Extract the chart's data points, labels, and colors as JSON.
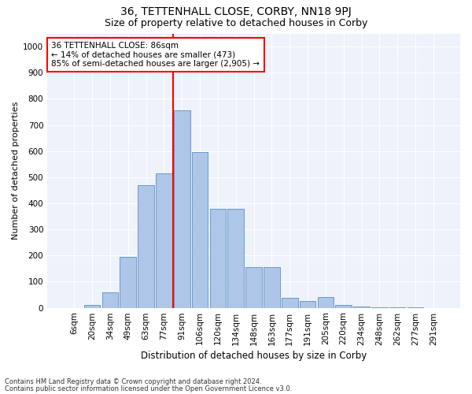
{
  "title": "36, TETTENHALL CLOSE, CORBY, NN18 9PJ",
  "subtitle": "Size of property relative to detached houses in Corby",
  "xlabel": "Distribution of detached houses by size in Corby",
  "ylabel": "Number of detached properties",
  "footnote1": "Contains HM Land Registry data © Crown copyright and database right 2024.",
  "footnote2": "Contains public sector information licensed under the Open Government Licence v3.0.",
  "annotation_title": "36 TETTENHALL CLOSE: 86sqm",
  "annotation_line1": "← 14% of detached houses are smaller (473)",
  "annotation_line2": "85% of semi-detached houses are larger (2,905) →",
  "categories": [
    "6sqm",
    "20sqm",
    "34sqm",
    "49sqm",
    "63sqm",
    "77sqm",
    "91sqm",
    "106sqm",
    "120sqm",
    "134sqm",
    "148sqm",
    "163sqm",
    "177sqm",
    "191sqm",
    "205sqm",
    "220sqm",
    "234sqm",
    "248sqm",
    "262sqm",
    "277sqm",
    "291sqm"
  ],
  "values": [
    0,
    12,
    60,
    195,
    470,
    515,
    755,
    595,
    380,
    380,
    155,
    155,
    37,
    25,
    40,
    10,
    5,
    2,
    1,
    1,
    0
  ],
  "bar_color": "#aec6e8",
  "bar_edge_color": "#5a8fc4",
  "vline_x_index": 6,
  "vline_color": "red",
  "ylim": [
    0,
    1050
  ],
  "yticks": [
    0,
    100,
    200,
    300,
    400,
    500,
    600,
    700,
    800,
    900,
    1000
  ],
  "annotation_box_color": "white",
  "annotation_box_edge_color": "red",
  "bg_color": "#eef2fa",
  "grid_color": "white",
  "title_fontsize": 10,
  "subtitle_fontsize": 9,
  "xlabel_fontsize": 8.5,
  "ylabel_fontsize": 8,
  "tick_fontsize": 7.5,
  "annotation_fontsize": 7.5,
  "footnote_fontsize": 6
}
